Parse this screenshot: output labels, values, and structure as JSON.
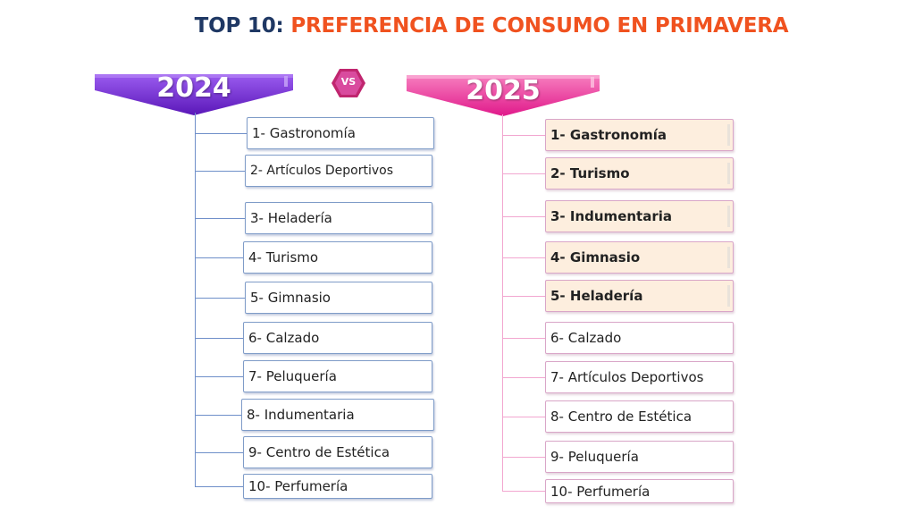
{
  "title": {
    "part1": "TOP 10:",
    "part2": "PREFERENCIA DE CONSUMO EN PRIMAVERA"
  },
  "vs_label": "VS",
  "colors": {
    "title_blue": "#1f3864",
    "title_orange": "#f0521f",
    "banner_2024": "#7b2fd6",
    "banner_2025": "#ee3fa0",
    "highlight_fill": "#fdeede"
  },
  "ranking_2024": {
    "year": "2024",
    "items": [
      "1- Gastronomía",
      "2- Artículos Deportivos",
      "3- Heladería",
      "4- Turismo",
      "5- Gimnasio",
      "6- Calzado",
      "7- Peluquería",
      "8- Indumentaria",
      "9- Centro de Estética",
      "10- Perfumería"
    ]
  },
  "ranking_2025": {
    "year": "2025",
    "items": [
      "1- Gastronomía",
      "2- Turismo",
      "3- Indumentaria",
      "4- Gimnasio",
      "5- Heladería",
      "6- Calzado",
      "7- Artículos Deportivos",
      "8- Centro de Estética",
      "9- Peluquería",
      "10- Perfumería"
    ],
    "highlighted_count": 5
  }
}
